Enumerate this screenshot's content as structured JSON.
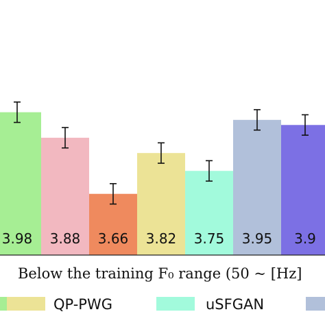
{
  "chart_data": {
    "type": "bar",
    "title": "",
    "xlabel": "Below the training F₀ range (50 ~ [Hz]",
    "ylabel": "",
    "ylim": [
      3.42,
      4.42
    ],
    "grid": false,
    "legend_position": "bottom",
    "series": [
      {
        "name": "",
        "value": 3.98,
        "label": "3.98",
        "err": 0.04,
        "color": "#a6ee94"
      },
      {
        "name": "",
        "value": 3.88,
        "label": "3.88",
        "err": 0.04,
        "color": "#f2b8c0"
      },
      {
        "name": "",
        "value": 3.66,
        "label": "3.66",
        "err": 0.04,
        "color": "#ef8a5e"
      },
      {
        "name": "QP-PWG",
        "value": 3.82,
        "label": "3.82",
        "err": 0.04,
        "color": "#ece396"
      },
      {
        "name": "uSFGAN",
        "value": 3.75,
        "label": "3.75",
        "err": 0.04,
        "color": "#a2fadc"
      },
      {
        "name": "",
        "value": 3.95,
        "label": "3.95",
        "err": 0.04,
        "color": "#b1c0da"
      },
      {
        "name": "",
        "value": 3.93,
        "label": "3.9",
        "err": 0.04,
        "color": "#7c70e4"
      }
    ],
    "legend": [
      {
        "name": "",
        "color": "#a6ee94"
      },
      {
        "name": "QP-PWG",
        "color": "#ece396"
      },
      {
        "name": "uSFGAN",
        "color": "#a2fadc"
      },
      {
        "name": "",
        "color": "#b1c0da"
      }
    ]
  }
}
